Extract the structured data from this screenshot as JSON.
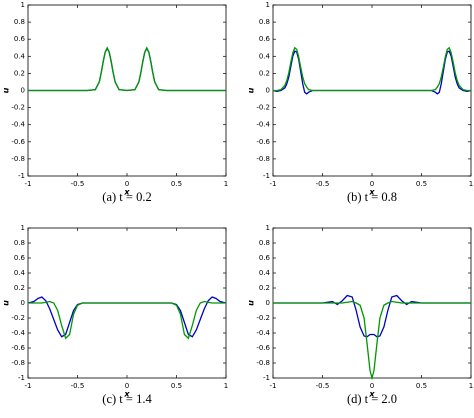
{
  "chart_data": [
    {
      "type": "line",
      "title": "(a) t = 0.2",
      "xlabel": "x",
      "ylabel": "u",
      "xlim": [
        -1,
        1
      ],
      "xticks": [
        -1,
        -0.5,
        0,
        0.5,
        1
      ],
      "ylim": [
        -1,
        1
      ],
      "yticks": [
        -1,
        -0.8,
        -0.6,
        -0.4,
        -0.2,
        0,
        0.2,
        0.4,
        0.6,
        0.8,
        1
      ],
      "x": [
        -1,
        -0.4,
        -0.32,
        -0.28,
        -0.26,
        -0.24,
        -0.22,
        -0.2,
        -0.18,
        -0.16,
        -0.14,
        -0.12,
        -0.08,
        0,
        0.08,
        0.12,
        0.14,
        0.16,
        0.18,
        0.2,
        0.22,
        0.24,
        0.26,
        0.28,
        0.32,
        0.4,
        1
      ],
      "series": [
        {
          "color": "#0000cc",
          "values": [
            0,
            0,
            0.01,
            0.1,
            0.21,
            0.34,
            0.45,
            0.49,
            0.45,
            0.34,
            0.21,
            0.1,
            0.01,
            0,
            0.01,
            0.1,
            0.21,
            0.34,
            0.45,
            0.49,
            0.45,
            0.34,
            0.21,
            0.1,
            0.01,
            0,
            0
          ]
        },
        {
          "color": "#009900",
          "values": [
            0,
            0,
            0.01,
            0.1,
            0.21,
            0.34,
            0.45,
            0.5,
            0.45,
            0.34,
            0.21,
            0.1,
            0.01,
            0,
            0.01,
            0.1,
            0.21,
            0.34,
            0.45,
            0.5,
            0.45,
            0.34,
            0.21,
            0.1,
            0.01,
            0,
            0
          ]
        }
      ]
    },
    {
      "type": "line",
      "title": "(b) t = 0.8",
      "xlabel": "x",
      "ylabel": "u",
      "xlim": [
        -1,
        1
      ],
      "xticks": [
        -1,
        -0.5,
        0,
        0.5,
        1
      ],
      "ylim": [
        -1,
        1
      ],
      "yticks": [
        -1,
        -0.8,
        -0.6,
        -0.4,
        -0.2,
        0,
        0.2,
        0.4,
        0.6,
        0.8,
        1
      ],
      "x": [
        -1,
        -0.96,
        -0.92,
        -0.88,
        -0.86,
        -0.84,
        -0.82,
        -0.8,
        -0.78,
        -0.76,
        -0.74,
        -0.72,
        -0.7,
        -0.68,
        -0.66,
        -0.64,
        -0.6,
        -0.5,
        0,
        0.5,
        0.6,
        0.64,
        0.66,
        0.68,
        0.7,
        0.72,
        0.74,
        0.76,
        0.78,
        0.8,
        0.82,
        0.84,
        0.86,
        0.88,
        0.92,
        0.96,
        1
      ],
      "series": [
        {
          "color": "#0000cc",
          "values": [
            0,
            -0.01,
            0,
            0.03,
            0.08,
            0.16,
            0.28,
            0.4,
            0.46,
            0.45,
            0.36,
            0.22,
            0.08,
            -0.02,
            -0.04,
            -0.02,
            0,
            0,
            0,
            0,
            0,
            -0.02,
            -0.04,
            -0.02,
            0.08,
            0.22,
            0.36,
            0.45,
            0.46,
            0.4,
            0.28,
            0.16,
            0.08,
            0.03,
            0,
            -0.01,
            0
          ]
        },
        {
          "color": "#009900",
          "values": [
            0,
            0,
            0.01,
            0.06,
            0.12,
            0.21,
            0.33,
            0.44,
            0.5,
            0.48,
            0.39,
            0.27,
            0.16,
            0.08,
            0.04,
            0.01,
            0,
            0,
            0,
            0,
            0,
            0.01,
            0.04,
            0.08,
            0.16,
            0.27,
            0.39,
            0.48,
            0.5,
            0.44,
            0.33,
            0.21,
            0.12,
            0.06,
            0.01,
            0,
            0
          ]
        }
      ]
    },
    {
      "type": "line",
      "title": "(c) t = 1.4",
      "xlabel": "x",
      "ylabel": "u",
      "xlim": [
        -1,
        1
      ],
      "xticks": [
        -1,
        -0.5,
        0,
        0.5,
        1
      ],
      "ylim": [
        -1,
        1
      ],
      "yticks": [
        -1,
        -0.8,
        -0.6,
        -0.4,
        -0.2,
        0,
        0.2,
        0.4,
        0.6,
        0.8,
        1
      ],
      "x": [
        -1,
        -0.94,
        -0.9,
        -0.86,
        -0.82,
        -0.78,
        -0.74,
        -0.7,
        -0.66,
        -0.62,
        -0.58,
        -0.54,
        -0.5,
        -0.45,
        0,
        0.45,
        0.5,
        0.54,
        0.58,
        0.62,
        0.66,
        0.7,
        0.74,
        0.78,
        0.82,
        0.86,
        0.9,
        0.94,
        1
      ],
      "series": [
        {
          "color": "#0000cc",
          "values": [
            0,
            0.02,
            0.06,
            0.08,
            0.03,
            -0.08,
            -0.22,
            -0.36,
            -0.45,
            -0.42,
            -0.26,
            -0.1,
            -0.02,
            0,
            0,
            0,
            -0.02,
            -0.1,
            -0.26,
            -0.42,
            -0.45,
            -0.36,
            -0.22,
            -0.08,
            0.03,
            0.08,
            0.06,
            0.02,
            0
          ]
        },
        {
          "color": "#009900",
          "values": [
            0,
            0,
            0,
            0,
            0.01,
            0.02,
            0,
            -0.1,
            -0.3,
            -0.47,
            -0.42,
            -0.15,
            -0.03,
            0,
            0,
            0,
            -0.03,
            -0.15,
            -0.42,
            -0.47,
            -0.3,
            -0.1,
            0,
            0.02,
            0.01,
            0,
            0,
            0,
            0
          ]
        }
      ]
    },
    {
      "type": "line",
      "title": "(d) t = 2.0",
      "xlabel": "x",
      "ylabel": "u",
      "xlim": [
        -1,
        1
      ],
      "xticks": [
        -1,
        -0.5,
        0,
        0.5,
        1
      ],
      "ylim": [
        -1,
        1
      ],
      "yticks": [
        -1,
        -0.8,
        -0.6,
        -0.4,
        -0.2,
        0,
        0.2,
        0.4,
        0.6,
        0.8,
        1
      ],
      "x": [
        -1,
        -0.5,
        -0.4,
        -0.35,
        -0.3,
        -0.25,
        -0.2,
        -0.16,
        -0.12,
        -0.08,
        -0.05,
        -0.02,
        0,
        0.02,
        0.05,
        0.08,
        0.12,
        0.16,
        0.2,
        0.25,
        0.3,
        0.35,
        0.4,
        0.5,
        1
      ],
      "series": [
        {
          "color": "#0000cc",
          "values": [
            0,
            0,
            0.02,
            -0.02,
            0.03,
            0.1,
            0.08,
            -0.1,
            -0.32,
            -0.44,
            -0.45,
            -0.42,
            -0.42,
            -0.42,
            -0.45,
            -0.44,
            -0.32,
            -0.1,
            0.08,
            0.1,
            0.03,
            -0.02,
            0.02,
            0,
            0
          ]
        },
        {
          "color": "#009900",
          "values": [
            0,
            0,
            0,
            0,
            0,
            0.01,
            0.02,
            0,
            -0.03,
            -0.2,
            -0.54,
            -0.9,
            -1,
            -0.9,
            -0.54,
            -0.2,
            -0.03,
            0,
            0.02,
            0.01,
            0,
            0,
            0,
            0,
            0
          ]
        }
      ]
    }
  ]
}
